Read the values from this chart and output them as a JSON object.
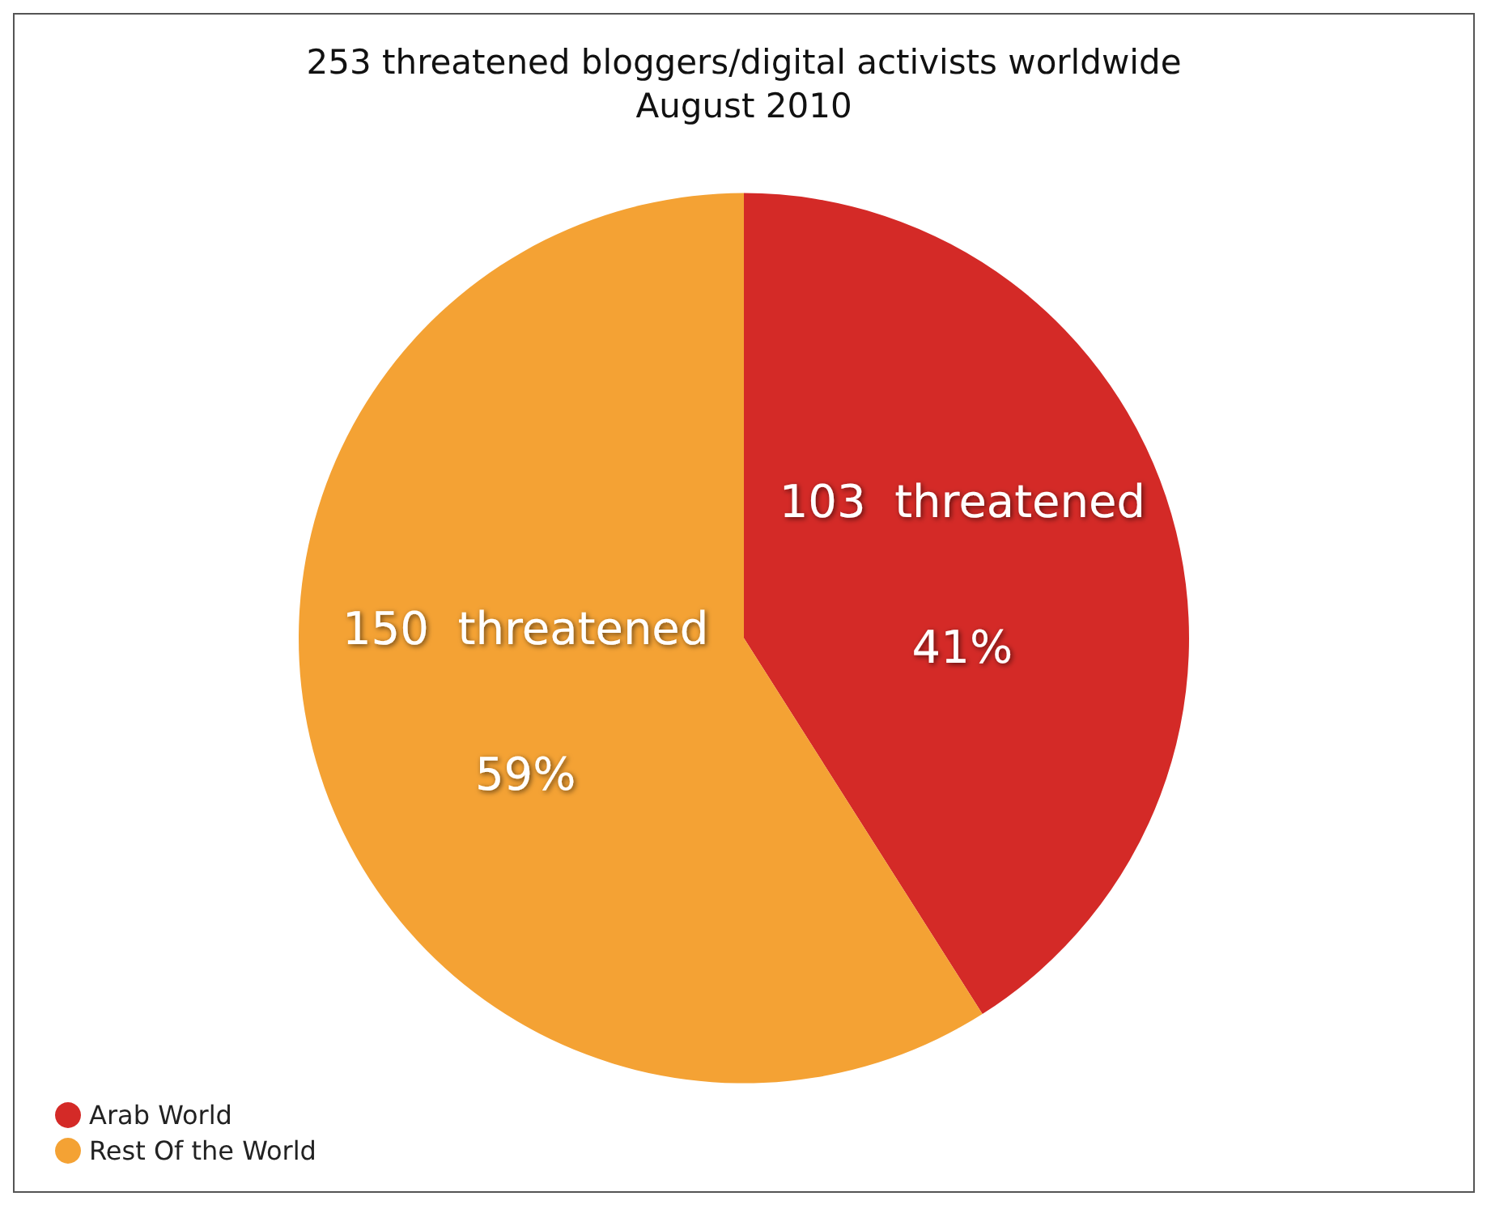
{
  "chart_data": {
    "type": "pie",
    "title": "253 threatened bloggers/digital activists worldwide",
    "subtitle": "August 2010",
    "categories": [
      "Arab World",
      "Rest Of the World"
    ],
    "values": [
      41,
      59
    ],
    "colors": [
      "#d42a27",
      "#f4a234"
    ],
    "value_labels": [
      "103  threatened\n\n\n41%",
      "150  threatened\n\n\n59%"
    ],
    "legend": "bottom left"
  }
}
